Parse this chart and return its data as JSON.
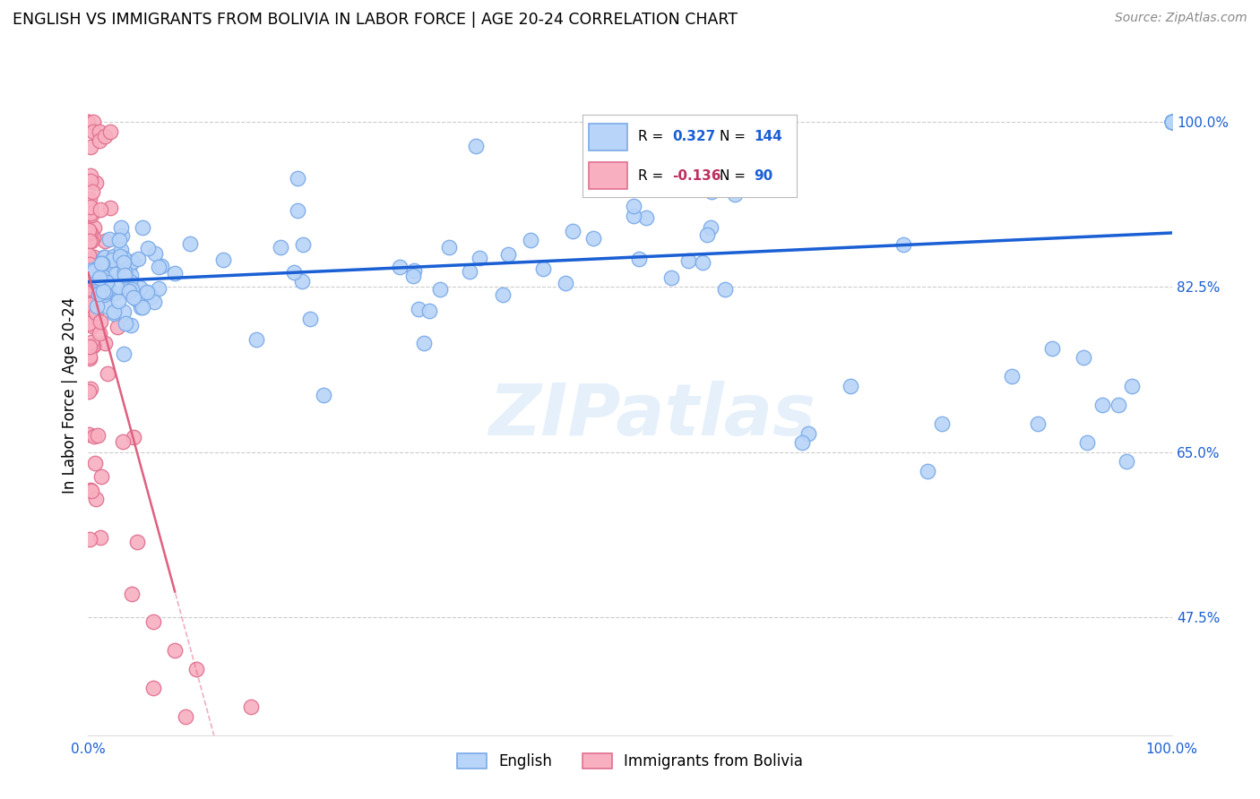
{
  "title": "ENGLISH VS IMMIGRANTS FROM BOLIVIA IN LABOR FORCE | AGE 20-24 CORRELATION CHART",
  "source": "Source: ZipAtlas.com",
  "ylabel": "In Labor Force | Age 20-24",
  "watermark": "ZIPatlas",
  "legend_r_english": "0.327",
  "legend_n_english": "144",
  "legend_r_bolivia": "-0.136",
  "legend_n_bolivia": "90",
  "english_face_color": "#b8d4f8",
  "english_edge_color": "#7aaae8",
  "bolivia_face_color": "#f8b0c0",
  "bolivia_edge_color": "#e07090",
  "english_line_color": "#1a5fd4",
  "bolivia_line_color": "#e06080",
  "grid_color": "#cccccc",
  "right_axis_color": "#1a5fd4",
  "xlim": [
    0.0,
    1.0
  ],
  "ylim": [
    0.35,
    1.07
  ],
  "yticks": [
    0.475,
    0.65,
    0.825,
    1.0
  ],
  "ytick_labels": [
    "47.5%",
    "65.0%",
    "82.5%",
    "100.0%"
  ]
}
